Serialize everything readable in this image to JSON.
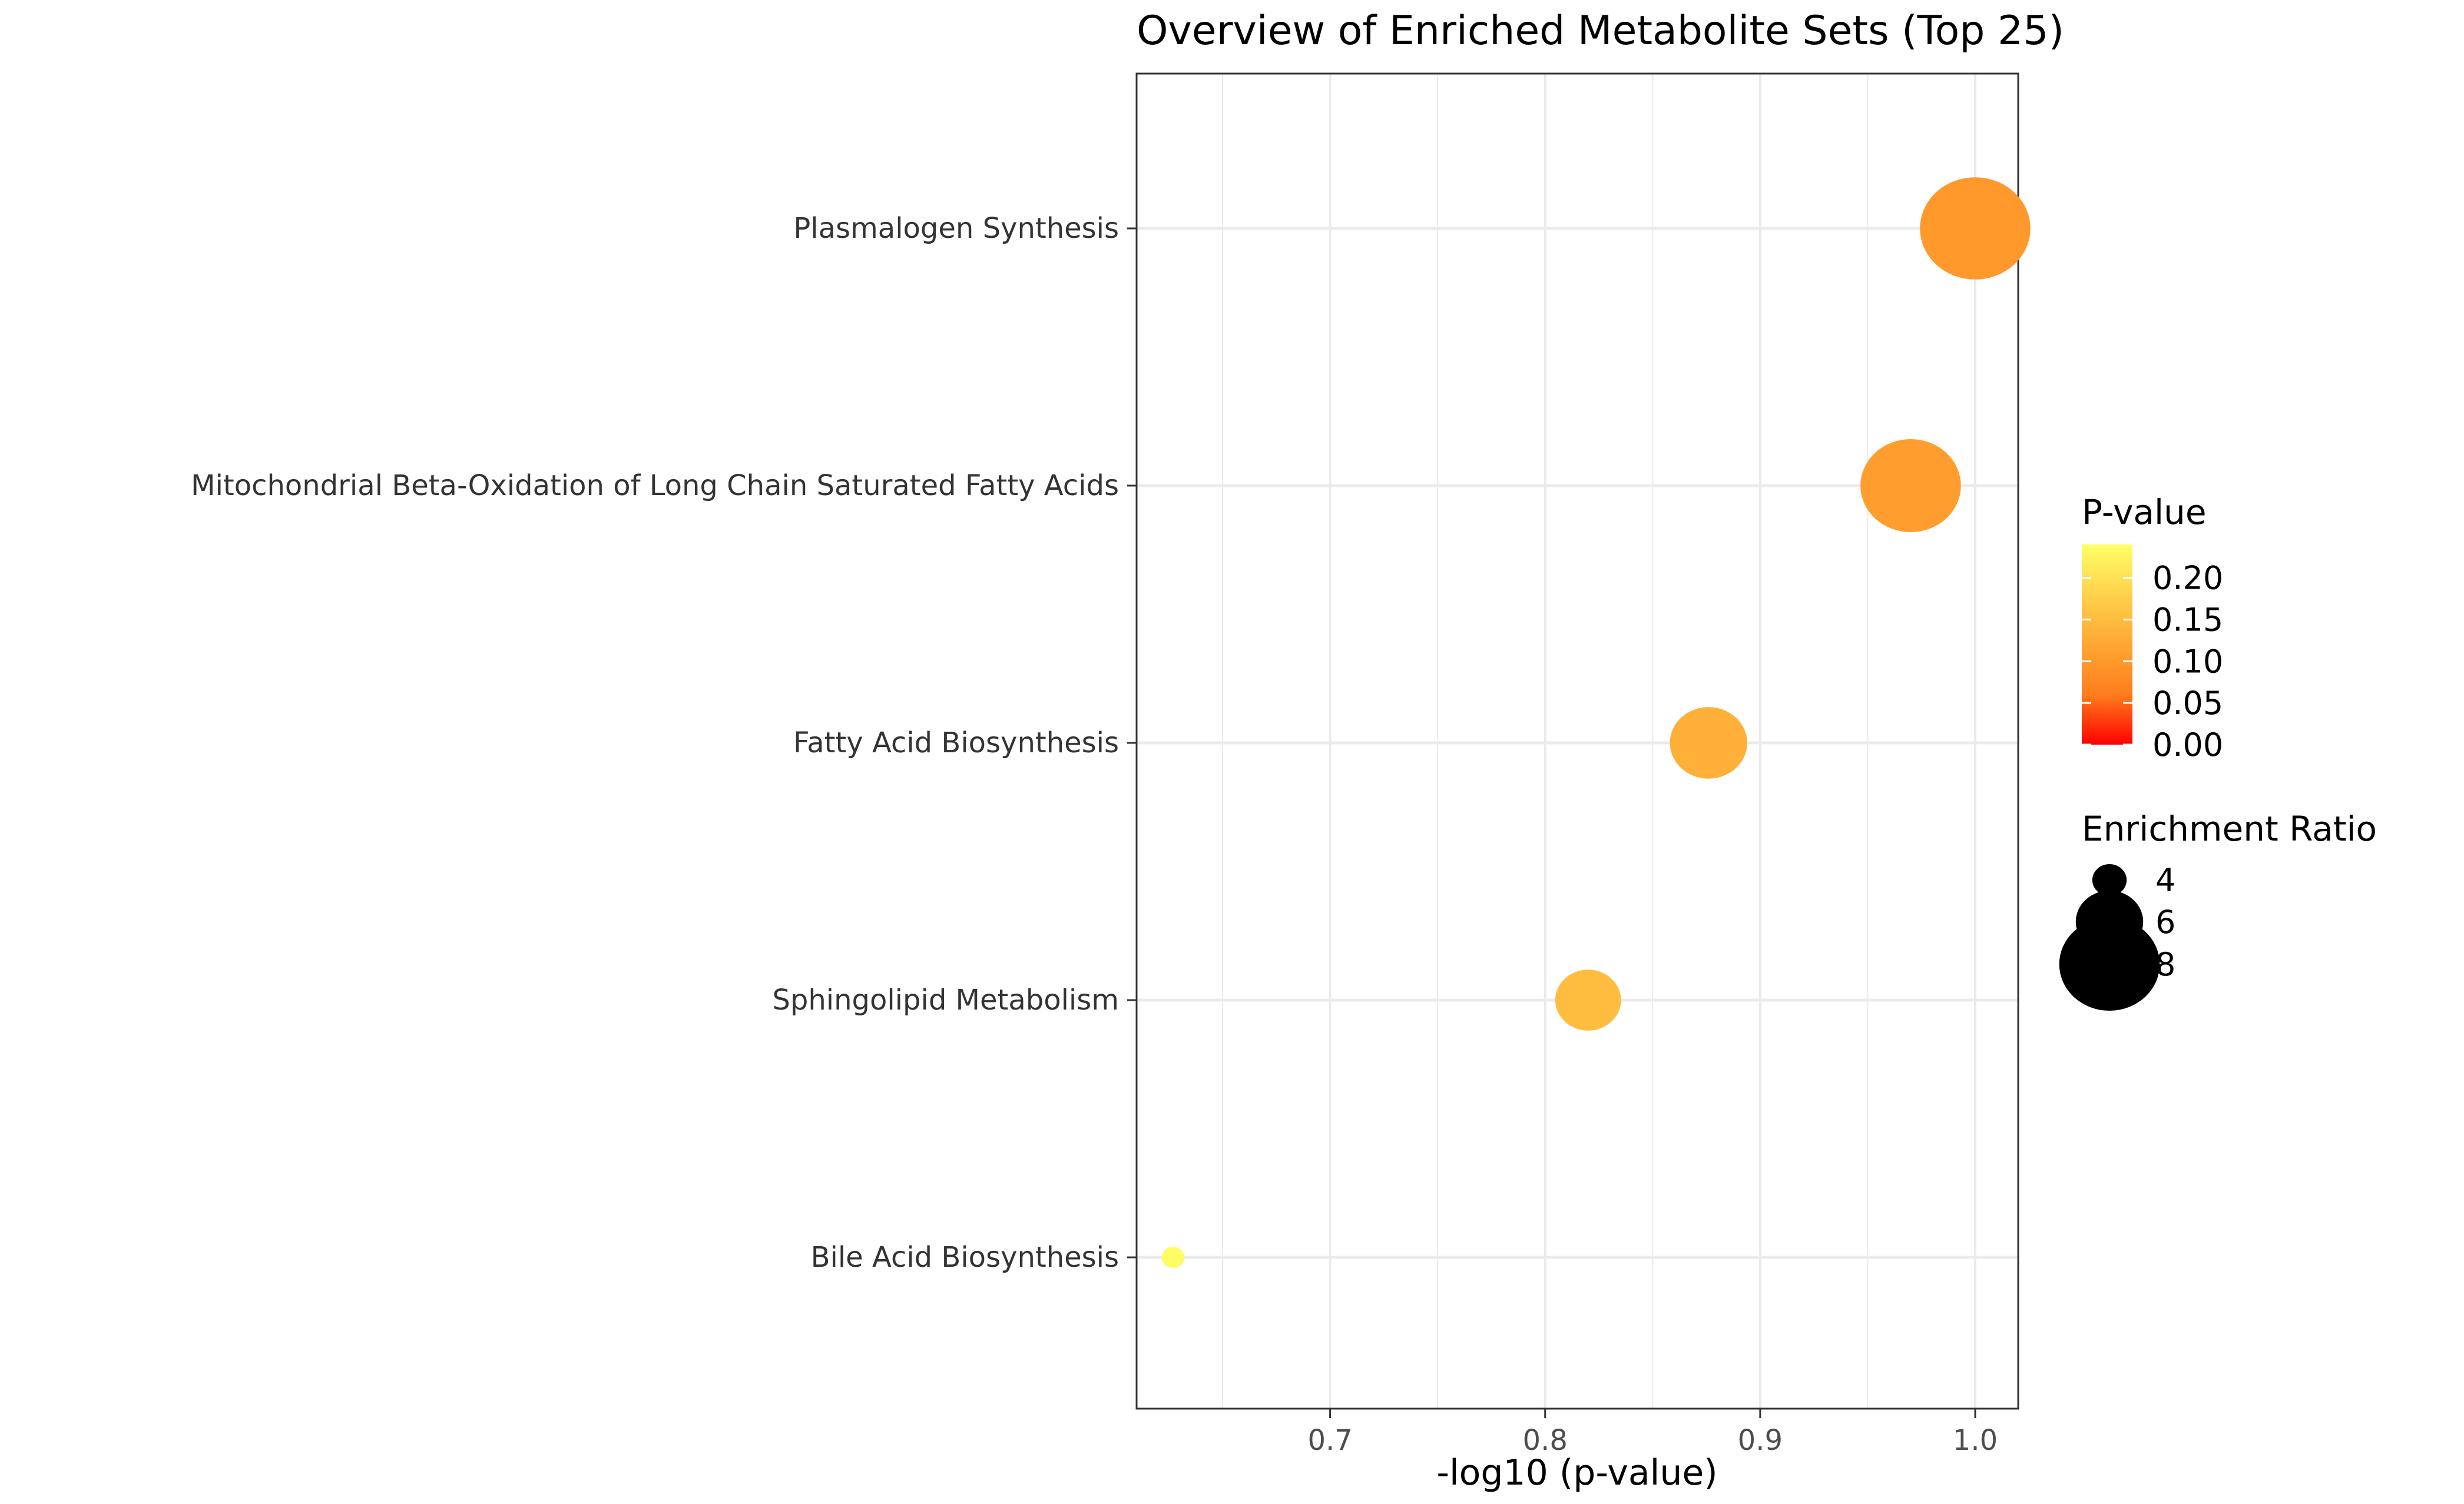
{
  "chart_data": {
    "type": "scatter",
    "title": "Overview of Enriched Metabolite Sets (Top 25)",
    "xlabel": "-log10 (p-value)",
    "ylabel": "",
    "xlim": [
      0.61,
      1.02
    ],
    "x_ticks": [
      0.7,
      0.8,
      0.9,
      1.0
    ],
    "x_tick_labels": [
      "0.7",
      "0.8",
      "0.9",
      "1.0"
    ],
    "grid": true,
    "categories": [
      "Plasmalogen Synthesis",
      "Mitochondrial Beta-Oxidation of Long Chain Saturated Fatty Acids",
      "Fatty Acid Biosynthesis",
      "Sphingolipid Metabolism",
      "Bile Acid Biosynthesis"
    ],
    "points": [
      {
        "category": "Plasmalogen Synthesis",
        "x": 1.0,
        "p_value": 0.1,
        "enrichment_ratio": 8.6
      },
      {
        "category": "Mitochondrial Beta-Oxidation of Long Chain Saturated Fatty Acids",
        "x": 0.97,
        "p_value": 0.107,
        "enrichment_ratio": 8.0
      },
      {
        "category": "Fatty Acid Biosynthesis",
        "x": 0.876,
        "p_value": 0.133,
        "enrichment_ratio": 6.6
      },
      {
        "category": "Sphingolipid Metabolism",
        "x": 0.82,
        "p_value": 0.151,
        "enrichment_ratio": 5.9
      },
      {
        "category": "Bile Acid Biosynthesis",
        "x": 0.627,
        "p_value": 0.236,
        "enrichment_ratio": 3.3
      }
    ],
    "color_legend": {
      "title": "P-value",
      "range": [
        0.0,
        0.24
      ],
      "colors": [
        "#ff0000",
        "#ff7d1c",
        "#ffa733",
        "#ffd24c",
        "#ffff66"
      ],
      "tick_labels": [
        "0.20",
        "0.15",
        "0.10",
        "0.05",
        "0.00"
      ],
      "tick_values": [
        0.2,
        0.15,
        0.1,
        0.05,
        0.0
      ]
    },
    "size_legend": {
      "title": "Enrichment Ratio",
      "labels": [
        "4",
        "6",
        "8"
      ],
      "values": [
        4,
        6,
        8
      ]
    },
    "legend_position": "right",
    "colors": {
      "panel_border": "#333333",
      "grid": "#ebebeb",
      "point_black": "#000000"
    }
  }
}
